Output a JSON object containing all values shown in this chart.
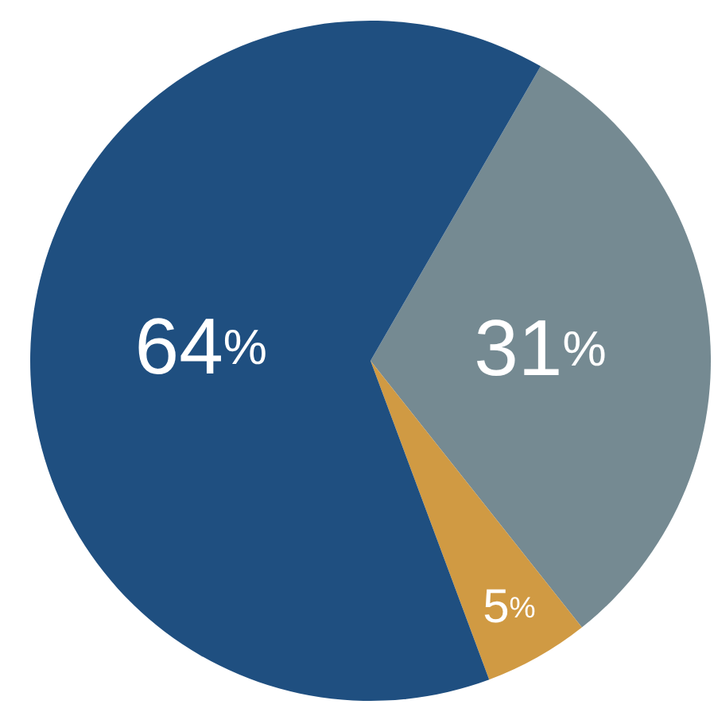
{
  "chart_data": {
    "type": "pie",
    "categories": [
      null,
      null,
      null
    ],
    "values": [
      31,
      5,
      64
    ],
    "colors": [
      "#758a92",
      "#d09a43",
      "#1f4f80"
    ],
    "value_labels": [
      "31%",
      "5%",
      "64%"
    ],
    "legend": false
  }
}
